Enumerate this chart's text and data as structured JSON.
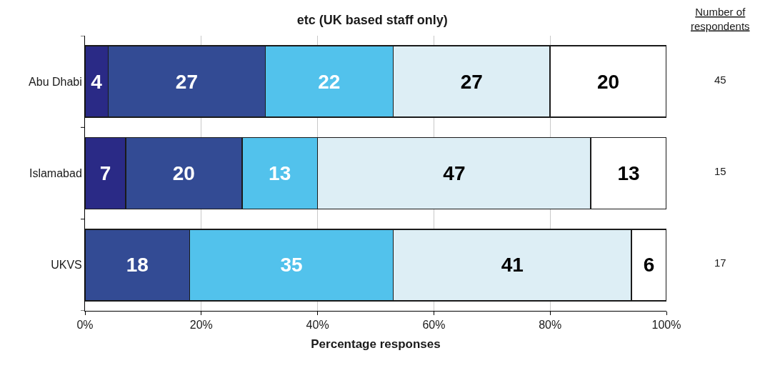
{
  "chart_data": {
    "type": "bar",
    "orientation": "horizontal",
    "stacked": true,
    "title": "etc (UK based staff only)",
    "xlabel": "Percentage responses",
    "categories": [
      "Abu Dhabi",
      "Islamabad",
      "UKVS"
    ],
    "series": [
      {
        "color": "#2a2a86",
        "values": [
          4,
          7,
          null
        ]
      },
      {
        "color": "#334b94",
        "values": [
          27,
          20,
          18
        ]
      },
      {
        "color": "#52c2ec",
        "values": [
          22,
          13,
          35
        ]
      },
      {
        "color": "#ddeef5",
        "values": [
          27,
          47,
          41
        ]
      },
      {
        "color": "#ffffff",
        "values": [
          20,
          13,
          6
        ]
      }
    ],
    "xlim": [
      0,
      100
    ],
    "xticks": [
      {
        "value": 0,
        "label": "0%"
      },
      {
        "value": 20,
        "label": "20%"
      },
      {
        "value": 40,
        "label": "40%"
      },
      {
        "value": 60,
        "label": "60%"
      },
      {
        "value": 80,
        "label": "80%"
      },
      {
        "value": 100,
        "label": "100%"
      }
    ],
    "grid": "x",
    "data_labels": true,
    "annotations": [
      "Number of respondents",
      "45",
      "15",
      "17"
    ]
  }
}
